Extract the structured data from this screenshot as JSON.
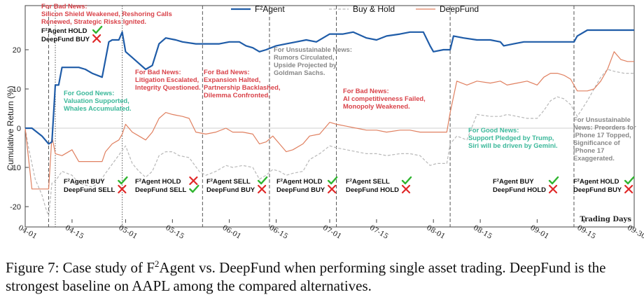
{
  "chart_data": {
    "type": "line",
    "ylabel": "Cumulative Return (%)",
    "xlabel": "Trading Days",
    "ylim": [
      -25,
      27
    ],
    "yticks": [
      -20,
      -10,
      0,
      10,
      20
    ],
    "xlim": [
      "04-01",
      "09-30"
    ],
    "xticks": [
      "04-01",
      "04-15",
      "05-01",
      "05-15",
      "06-01",
      "06-15",
      "07-01",
      "07-15",
      "08-01",
      "08-15",
      "09-01",
      "09-15",
      "09-30"
    ],
    "grid": false,
    "legend_position": "top-center",
    "colors": {
      "f2": "#1f5ca8",
      "buyhold": "#b8b8b8",
      "deepfund": "#e08060",
      "bad": "#d9434a",
      "good": "#3bb89a",
      "unsustainable": "#888888",
      "check": "#2fb52f",
      "cross": "#e02828"
    },
    "series": [
      {
        "name": "F²Agent",
        "key": "f2",
        "style": "solid",
        "points": [
          [
            "04-01",
            0
          ],
          [
            "04-03",
            0
          ],
          [
            "04-06",
            -2
          ],
          [
            "04-08",
            -4
          ],
          [
            "04-09",
            -3.5
          ],
          [
            "04-10",
            11
          ],
          [
            "04-11",
            11
          ],
          [
            "04-12",
            15.5
          ],
          [
            "04-17",
            15.5
          ],
          [
            "04-19",
            15
          ],
          [
            "04-21",
            14
          ],
          [
            "04-24",
            13
          ],
          [
            "04-25",
            17.5
          ],
          [
            "04-26",
            22
          ],
          [
            "04-27",
            22.5
          ],
          [
            "04-29",
            22.5
          ],
          [
            "04-30",
            24.5
          ],
          [
            "05-01",
            19.5
          ],
          [
            "05-03",
            18
          ],
          [
            "05-05",
            16.5
          ],
          [
            "05-07",
            15
          ],
          [
            "05-09",
            16
          ],
          [
            "05-11",
            21.5
          ],
          [
            "05-13",
            23
          ],
          [
            "05-16",
            22.5
          ],
          [
            "05-18",
            22
          ],
          [
            "05-22",
            21.5
          ],
          [
            "05-26",
            21.5
          ],
          [
            "05-29",
            21.5
          ],
          [
            "06-01",
            22
          ],
          [
            "06-04",
            22
          ],
          [
            "06-06",
            21
          ],
          [
            "06-08",
            20.5
          ],
          [
            "06-10",
            19.5
          ],
          [
            "06-12",
            20
          ],
          [
            "06-15",
            21
          ],
          [
            "06-18",
            21.5
          ],
          [
            "06-21",
            22
          ],
          [
            "06-24",
            22.5
          ],
          [
            "06-27",
            22
          ],
          [
            "07-01",
            24
          ],
          [
            "07-05",
            24
          ],
          [
            "07-08",
            24.5
          ],
          [
            "07-12",
            23
          ],
          [
            "07-15",
            22.5
          ],
          [
            "07-18",
            23.5
          ],
          [
            "07-22",
            24
          ],
          [
            "07-25",
            24.5
          ],
          [
            "07-29",
            24.5
          ],
          [
            "07-31",
            21
          ],
          [
            "08-01",
            19.5
          ],
          [
            "08-04",
            20
          ],
          [
            "08-06",
            20
          ],
          [
            "08-07",
            23.5
          ],
          [
            "08-10",
            23
          ],
          [
            "08-14",
            22.5
          ],
          [
            "08-18",
            22.5
          ],
          [
            "08-21",
            22
          ],
          [
            "08-22",
            21
          ],
          [
            "08-25",
            21.5
          ],
          [
            "08-28",
            22
          ],
          [
            "09-01",
            22
          ],
          [
            "09-05",
            22
          ],
          [
            "09-09",
            22
          ],
          [
            "09-12",
            22
          ],
          [
            "09-13",
            23.5
          ],
          [
            "09-16",
            25
          ],
          [
            "09-20",
            25
          ],
          [
            "09-25",
            25
          ],
          [
            "09-30",
            25
          ]
        ]
      },
      {
        "name": "Buy & Hold",
        "key": "buyhold",
        "style": "dashed",
        "points": [
          [
            "04-01",
            0
          ],
          [
            "04-02",
            -5
          ],
          [
            "04-04",
            -13
          ],
          [
            "04-06",
            -17
          ],
          [
            "04-07",
            -20
          ],
          [
            "04-08",
            -22.5
          ],
          [
            "04-09",
            -14
          ],
          [
            "04-10",
            -13.5
          ],
          [
            "04-12",
            -11
          ],
          [
            "04-15",
            -12
          ],
          [
            "04-17",
            -14
          ],
          [
            "04-21",
            -15
          ],
          [
            "04-23",
            -14
          ],
          [
            "04-25",
            -11.5
          ],
          [
            "04-28",
            -8
          ],
          [
            "05-01",
            -4.5
          ],
          [
            "05-03",
            -9
          ],
          [
            "05-05",
            -11
          ],
          [
            "05-07",
            -12.5
          ],
          [
            "05-09",
            -11
          ],
          [
            "05-11",
            -7
          ],
          [
            "05-13",
            -6
          ],
          [
            "05-15",
            -6
          ],
          [
            "05-17",
            -7
          ],
          [
            "05-20",
            -7.5
          ],
          [
            "05-23",
            -11
          ],
          [
            "05-25",
            -12
          ],
          [
            "05-28",
            -11
          ],
          [
            "05-31",
            -9.5
          ],
          [
            "06-02",
            -10
          ],
          [
            "06-05",
            -9.5
          ],
          [
            "06-08",
            -10
          ],
          [
            "06-10",
            -13
          ],
          [
            "06-12",
            -12
          ],
          [
            "06-14",
            -10.5
          ],
          [
            "06-16",
            -11
          ],
          [
            "06-18",
            -12
          ],
          [
            "06-20",
            -11.5
          ],
          [
            "06-23",
            -11
          ],
          [
            "06-25",
            -8
          ],
          [
            "06-28",
            -6.5
          ],
          [
            "07-01",
            -4.5
          ],
          [
            "07-03",
            -5
          ],
          [
            "07-06",
            -5.5
          ],
          [
            "07-09",
            -6
          ],
          [
            "07-12",
            -6.5
          ],
          [
            "07-15",
            -6.5
          ],
          [
            "07-18",
            -7
          ],
          [
            "07-22",
            -6.5
          ],
          [
            "07-25",
            -6.5
          ],
          [
            "07-28",
            -7
          ],
          [
            "07-31",
            -9.5
          ],
          [
            "08-02",
            -9
          ],
          [
            "08-05",
            -9
          ],
          [
            "08-06",
            -4
          ],
          [
            "08-08",
            -2
          ],
          [
            "08-11",
            -3
          ],
          [
            "08-14",
            3.5
          ],
          [
            "08-18",
            3
          ],
          [
            "08-21",
            3
          ],
          [
            "08-23",
            3.5
          ],
          [
            "08-26",
            3
          ],
          [
            "08-29",
            2.5
          ],
          [
            "09-01",
            2.5
          ],
          [
            "09-03",
            4.5
          ],
          [
            "09-05",
            7
          ],
          [
            "09-07",
            8
          ],
          [
            "09-09",
            7.5
          ],
          [
            "09-11",
            6
          ],
          [
            "09-13",
            3
          ],
          [
            "09-16",
            7
          ],
          [
            "09-18",
            10
          ],
          [
            "09-20",
            13
          ],
          [
            "09-22",
            15
          ],
          [
            "09-24",
            14.5
          ],
          [
            "09-27",
            14
          ],
          [
            "09-30",
            14
          ]
        ]
      },
      {
        "name": "DeepFund",
        "key": "deepfund",
        "style": "solid",
        "points": [
          [
            "04-01",
            0
          ],
          [
            "04-03",
            -15.5
          ],
          [
            "04-06",
            -15.5
          ],
          [
            "04-08",
            -15.5
          ],
          [
            "04-09",
            -2
          ],
          [
            "04-10",
            -6.5
          ],
          [
            "04-12",
            -7
          ],
          [
            "04-15",
            -5.5
          ],
          [
            "04-17",
            -8.5
          ],
          [
            "04-21",
            -8.5
          ],
          [
            "04-24",
            -8.5
          ],
          [
            "04-25",
            -6
          ],
          [
            "04-27",
            -4
          ],
          [
            "04-29",
            -3
          ],
          [
            "04-30",
            -1.5
          ],
          [
            "05-01",
            1
          ],
          [
            "05-03",
            -1
          ],
          [
            "05-05",
            -2
          ],
          [
            "05-07",
            -3
          ],
          [
            "05-09",
            -1
          ],
          [
            "05-11",
            2.5
          ],
          [
            "05-13",
            4
          ],
          [
            "05-15",
            3.5
          ],
          [
            "05-18",
            3
          ],
          [
            "05-20",
            2.5
          ],
          [
            "05-22",
            -1
          ],
          [
            "05-25",
            -1.5
          ],
          [
            "05-28",
            -1
          ],
          [
            "05-31",
            0
          ],
          [
            "06-02",
            -1
          ],
          [
            "06-05",
            -1
          ],
          [
            "06-08",
            -1.5
          ],
          [
            "06-10",
            -4
          ],
          [
            "06-12",
            -3.5
          ],
          [
            "06-14",
            -2
          ],
          [
            "06-16",
            -4
          ],
          [
            "06-18",
            -6
          ],
          [
            "06-20",
            -5.5
          ],
          [
            "06-23",
            -4
          ],
          [
            "06-25",
            -2
          ],
          [
            "06-28",
            -1.5
          ],
          [
            "07-01",
            1.5
          ],
          [
            "07-03",
            1
          ],
          [
            "07-06",
            0.5
          ],
          [
            "07-09",
            0
          ],
          [
            "07-12",
            -0.5
          ],
          [
            "07-15",
            -0.5
          ],
          [
            "07-18",
            -1
          ],
          [
            "07-22",
            -0.5
          ],
          [
            "07-25",
            -0.5
          ],
          [
            "07-28",
            -1
          ],
          [
            "07-31",
            -1
          ],
          [
            "08-02",
            -1
          ],
          [
            "08-05",
            -1
          ],
          [
            "08-06",
            4
          ],
          [
            "08-08",
            12
          ],
          [
            "08-11",
            11
          ],
          [
            "08-14",
            12
          ],
          [
            "08-18",
            11.5
          ],
          [
            "08-21",
            12
          ],
          [
            "08-23",
            11
          ],
          [
            "08-26",
            11.5
          ],
          [
            "08-29",
            12
          ],
          [
            "09-01",
            11
          ],
          [
            "09-03",
            13
          ],
          [
            "09-05",
            14
          ],
          [
            "09-07",
            14
          ],
          [
            "09-09",
            13.5
          ],
          [
            "09-11",
            12.5
          ],
          [
            "09-13",
            9.5
          ],
          [
            "09-16",
            9.5
          ],
          [
            "09-18",
            10
          ],
          [
            "09-20",
            12
          ],
          [
            "09-22",
            15
          ],
          [
            "09-24",
            19.5
          ],
          [
            "09-26",
            17.5
          ],
          [
            "09-28",
            17
          ],
          [
            "09-30",
            17
          ]
        ]
      }
    ],
    "events": [
      {
        "date": "04-08",
        "style": "dash"
      },
      {
        "date": "04-10",
        "style": "dot"
      },
      {
        "date": "04-30",
        "style": "dot"
      },
      {
        "date": "05-24",
        "style": "dash"
      },
      {
        "date": "06-13",
        "style": "dash"
      },
      {
        "date": "07-03",
        "style": "dash"
      },
      {
        "date": "08-06",
        "style": "dash"
      },
      {
        "date": "09-12",
        "style": "dash"
      }
    ],
    "news": [
      {
        "type": "bad",
        "lines": [
          "For Bad News:",
          "Silicon Shield Weakened, Reshoring Calls",
          "Renewed, Strategic Risks Ignited."
        ]
      },
      {
        "type": "good",
        "lines": [
          "For Good News:",
          "Valuation Supported,",
          "Whales Accumulated."
        ]
      },
      {
        "type": "bad",
        "lines": [
          "For Bad News:",
          "Litigation Escalated,",
          "Integrity Questioned."
        ]
      },
      {
        "type": "bad",
        "lines": [
          "For Bad News:",
          "Expansion Halted,",
          "Partnership Backlashed,",
          "Dilemma Confronted."
        ]
      },
      {
        "type": "unsustainable",
        "lines": [
          "For Unsustainable News:",
          "Rumors Circulated,",
          "Upside Projected by",
          "Goldman Sachs."
        ]
      },
      {
        "type": "bad",
        "lines": [
          "For Bad News:",
          "AI competitiveness Failed,",
          "Monopoly Weakened."
        ]
      },
      {
        "type": "good",
        "lines": [
          "For Good News:",
          "Support Pledged by Trump,",
          "Siri will be driven by Gemini."
        ]
      },
      {
        "type": "unsustainable",
        "lines": [
          "For Unsustainable",
          "News: Preorders for",
          "iPhone 17 Topped,",
          "Significance of",
          "iPhone 17",
          "Exaggerated."
        ]
      }
    ],
    "decisions": [
      {
        "f2": "F²Agent HOLD",
        "f2_ok": true,
        "df": "DeepFund BUY",
        "df_ok": false
      },
      {
        "f2": "F²Agent BUY",
        "f2_ok": true,
        "df": "DeepFund SELL",
        "df_ok": false
      },
      {
        "f2": "F²Agent HOLD",
        "f2_ok": false,
        "df": "DeepFund SELL",
        "df_ok": true
      },
      {
        "f2": "F²Agent SELL",
        "f2_ok": true,
        "df": "DeepFund BUY",
        "df_ok": false
      },
      {
        "f2": "F²Agent HOLD",
        "f2_ok": true,
        "df": "DeepFund BUY",
        "df_ok": false
      },
      {
        "f2": "F²Agent SELL",
        "f2_ok": true,
        "df": "DeepFund HOLD",
        "df_ok": false
      },
      {
        "f2": "F²Agent BUY",
        "f2_ok": true,
        "df": "DeepFund HOLD",
        "df_ok": false
      },
      {
        "f2": "F²Agent  HOLD",
        "f2_ok": true,
        "df": "DeepFund BUY",
        "df_ok": false
      }
    ]
  },
  "caption": {
    "prefix": "Figure 7: Case study of F",
    "sup": "2",
    "suffix": "Agent vs. DeepFund when performing single asset trading. DeepFund is the strongest baseline on AAPL among the compared alternatives."
  }
}
